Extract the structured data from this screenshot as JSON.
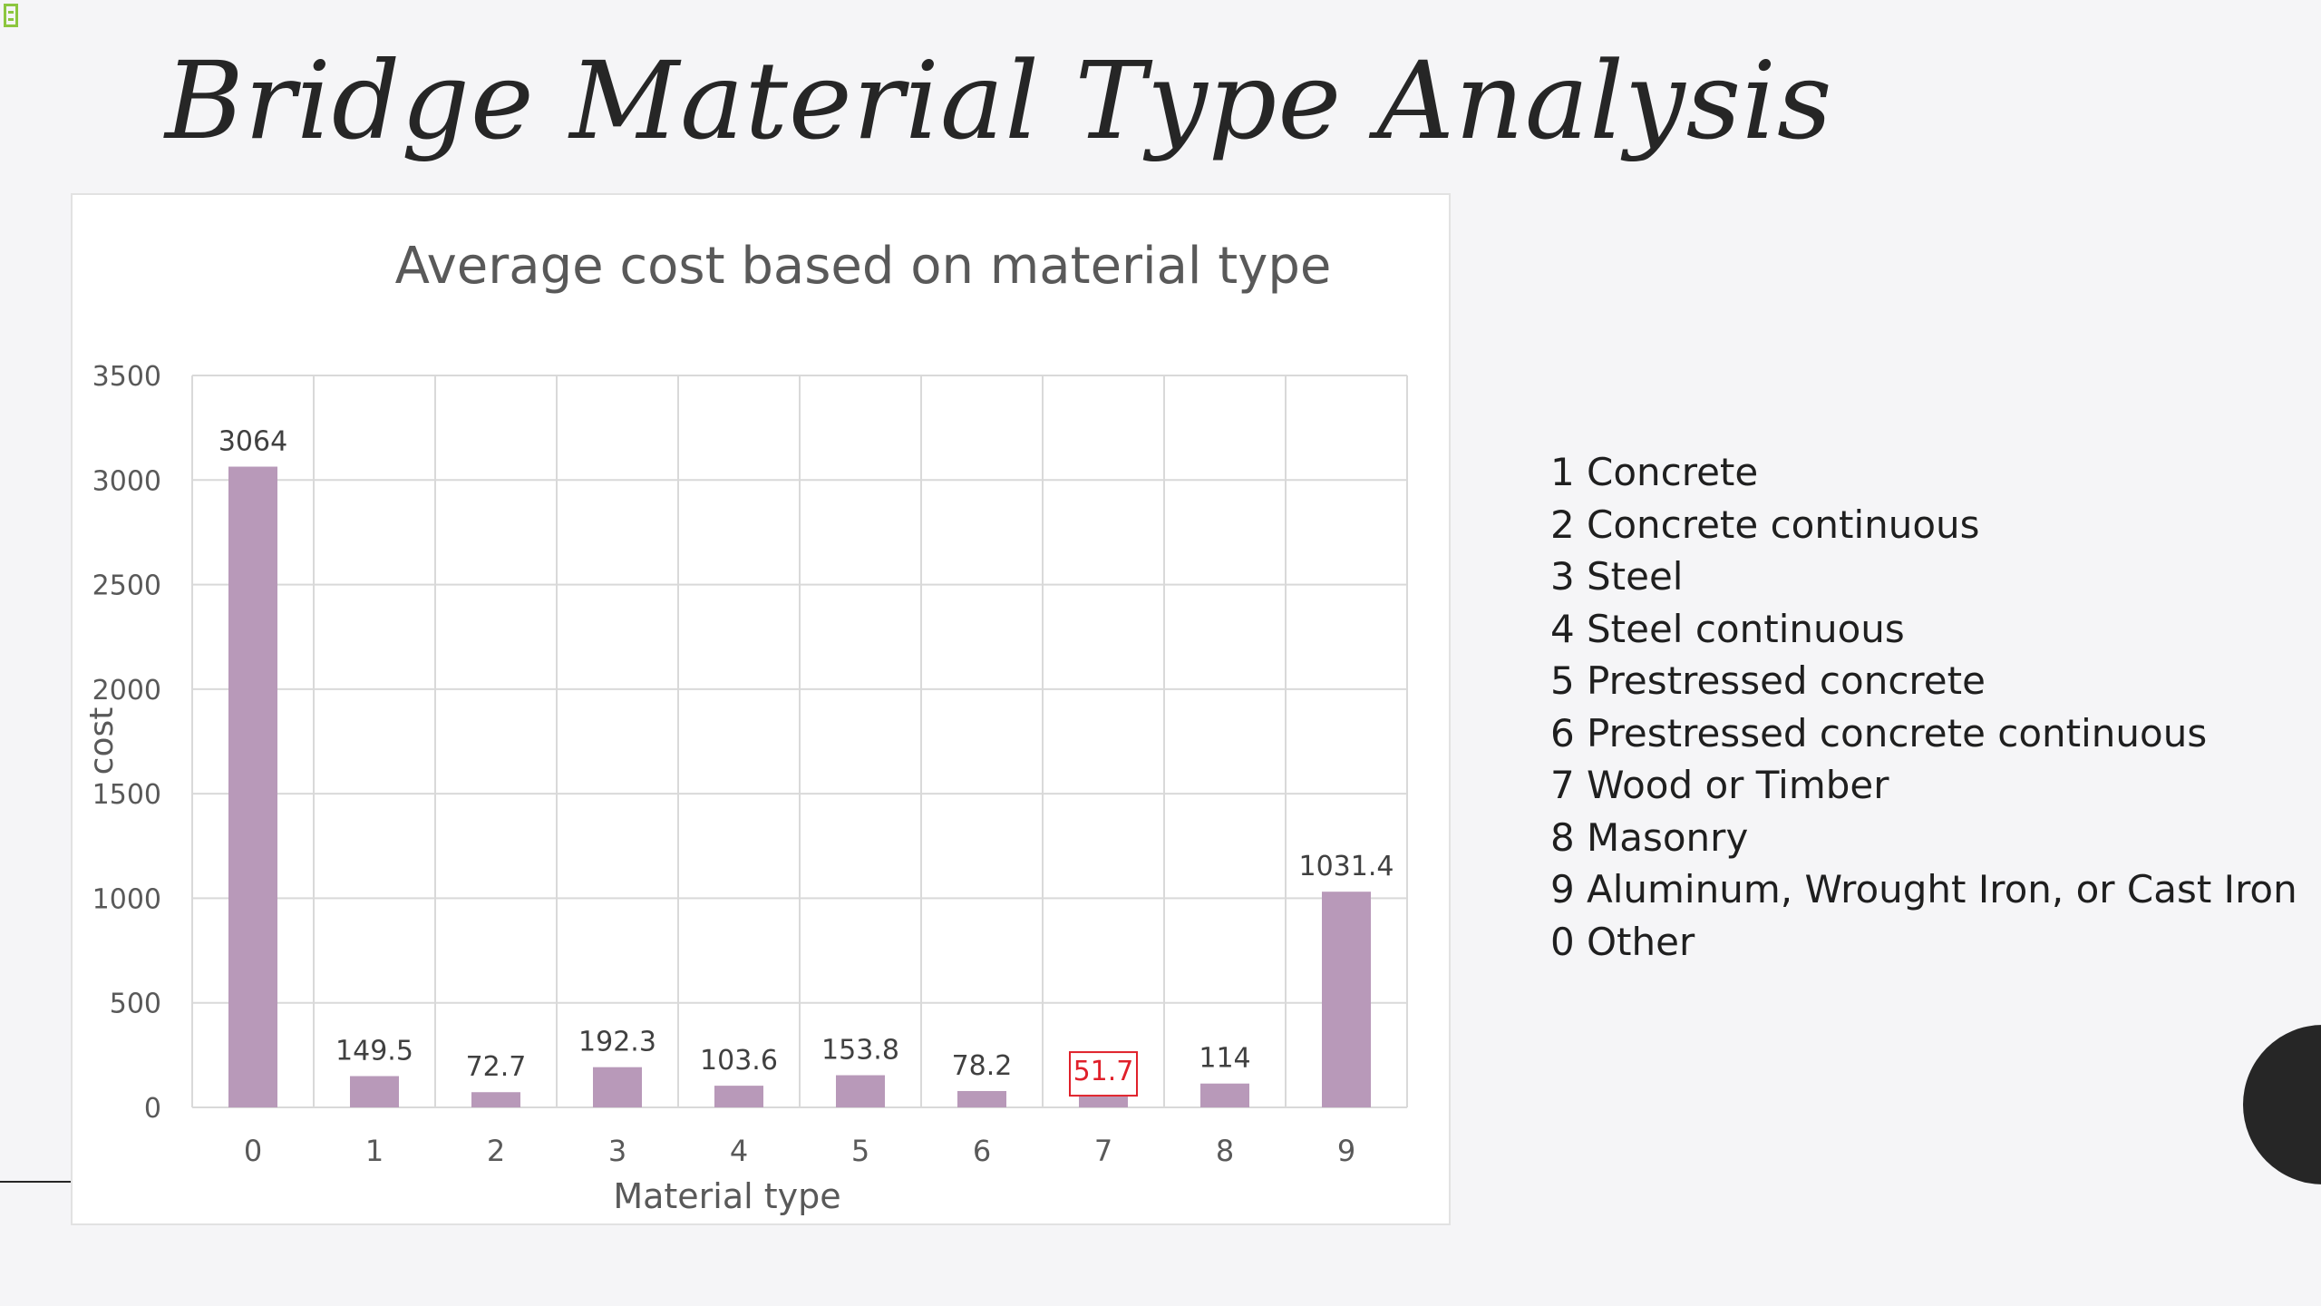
{
  "slide": {
    "title": "Bridge Material Type Analysis"
  },
  "chart_data": {
    "type": "bar",
    "title": "Average cost based on material type",
    "xlabel": "Material type",
    "ylabel": "cost",
    "categories": [
      "0",
      "1",
      "2",
      "3",
      "4",
      "5",
      "6",
      "7",
      "8",
      "9"
    ],
    "values": [
      3064,
      149.5,
      72.7,
      192.3,
      103.6,
      153.8,
      78.2,
      51.7,
      114,
      1031.4
    ],
    "data_labels": [
      "3064",
      "149.5",
      "72.7",
      "192.3",
      "103.6",
      "153.8",
      "78.2",
      "51.7",
      "114",
      "1031.4"
    ],
    "highlighted_category": "7",
    "ylim": [
      0,
      3500
    ],
    "yticks": [
      0,
      500,
      1000,
      1500,
      2000,
      2500,
      3000,
      3500
    ],
    "grid": true,
    "bar_color": "#b899b9",
    "highlight_color": "#e0202a"
  },
  "legend": {
    "items": [
      {
        "code": "1",
        "label": "Concrete"
      },
      {
        "code": "2",
        "label": "Concrete continuous"
      },
      {
        "code": "3",
        "label": "Steel"
      },
      {
        "code": "4",
        "label": "Steel continuous"
      },
      {
        "code": "5",
        "label": "Prestressed concrete"
      },
      {
        "code": "6",
        "label": "Prestressed concrete continuous"
      },
      {
        "code": "7",
        "label": "Wood or Timber"
      },
      {
        "code": "8",
        "label": "Masonry"
      },
      {
        "code": "9",
        "label": "Aluminum, Wrought Iron, or Cast Iron"
      },
      {
        "code": "0",
        "label": "Other"
      }
    ]
  }
}
